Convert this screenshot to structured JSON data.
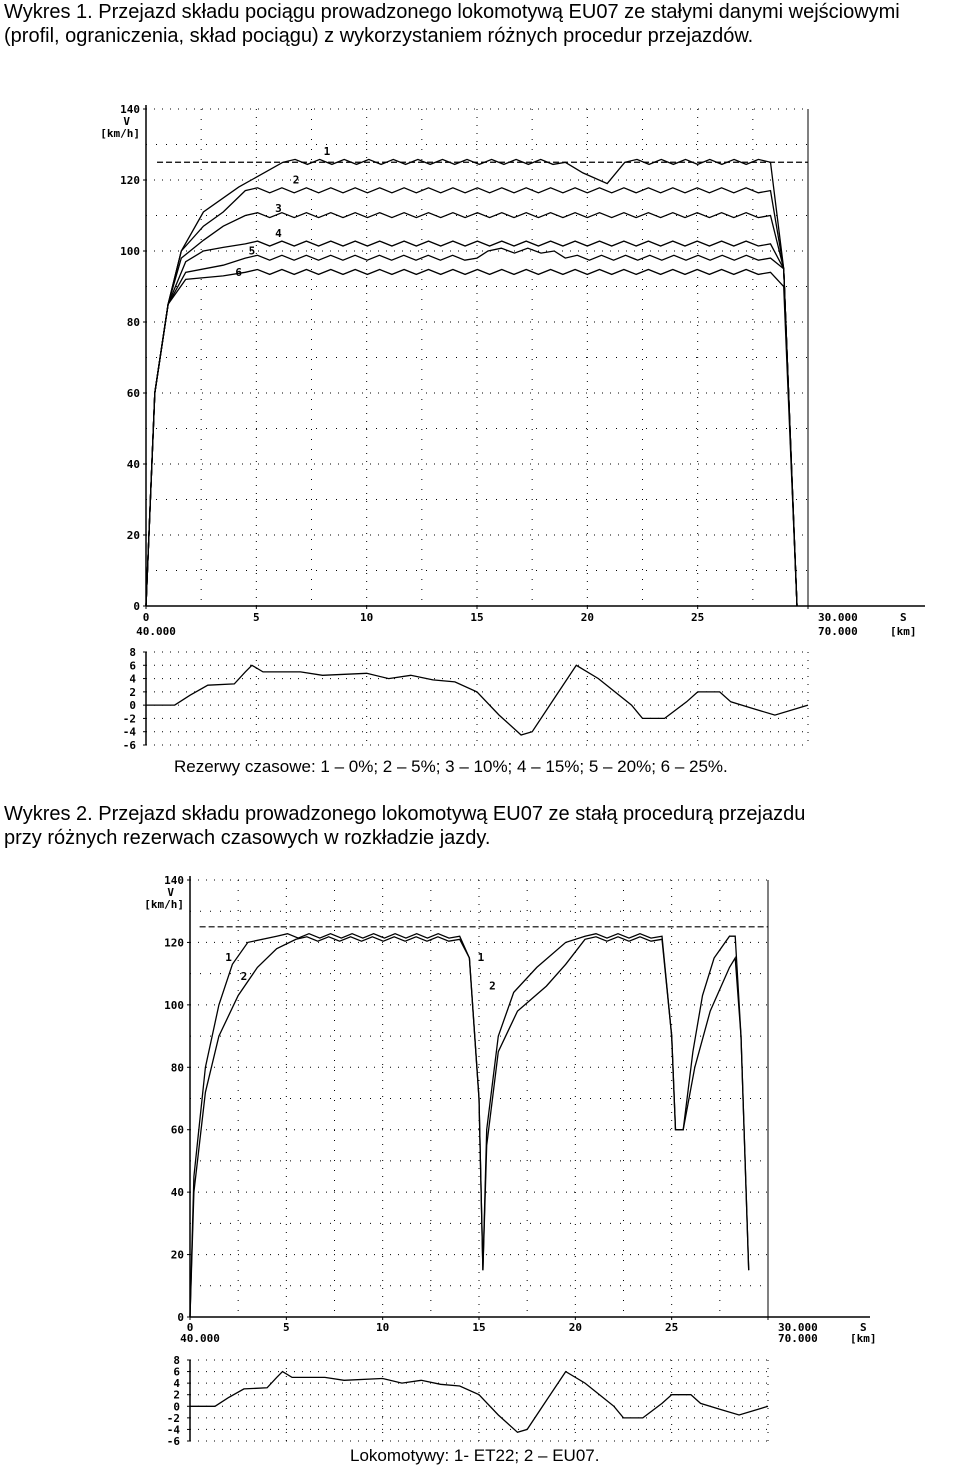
{
  "figure1": {
    "caption": "Wykres 1. Przejazd składu pociągu prowadzonego lokomotywą EU07 ze stałymi danymi wejściowymi (profil, ograniczenia, skład pociągu) z wykorzystaniem różnych procedur przejazdów.",
    "note": "Rezerwy czasowe: 1 – 0%; 2 – 5%; 3 – 10%; 4 – 15%; 5 – 20%; 6 – 25%."
  },
  "figure2": {
    "caption_line1": "Wykres 2. Przejazd składu prowadzonego lokomotywą EU07 ze stałą procedurą przejazdu",
    "caption_line2": "przy różnych rezerwach czasowych w rozkładzie jazdy.",
    "note": "Lokomotywy: 1- ET22; 2 – EU07."
  },
  "chart_data": [
    {
      "type": "line",
      "ylabel_v": "V",
      "ylabel_unit": "[km/h]",
      "xlabel_s": "S",
      "xlabel_unit": "[km]",
      "x_start_label": "40.000",
      "x_end_label": "70.000",
      "xlim": [
        0,
        30
      ],
      "ylim": [
        0,
        140
      ],
      "xticks": [
        "0",
        "5",
        "10",
        "15",
        "20",
        "25",
        "30.000"
      ],
      "yticks": [
        "0",
        "20",
        "40",
        "60",
        "80",
        "100",
        "120",
        "140"
      ],
      "speed_limit": 125,
      "series": [
        {
          "name": "1",
          "points": [
            [
              0,
              0
            ],
            [
              0.4,
              60
            ],
            [
              1,
              85
            ],
            [
              1.6,
              100
            ],
            [
              2.6,
              111
            ],
            [
              4.2,
              118
            ],
            [
              6.2,
              125
            ],
            [
              19,
              125
            ],
            [
              19.8,
              122
            ],
            [
              20.9,
              119
            ],
            [
              21.7,
              125
            ],
            [
              28.3,
              125
            ],
            [
              28.9,
              95
            ],
            [
              29.5,
              0
            ]
          ]
        },
        {
          "name": "2",
          "points": [
            [
              0,
              0
            ],
            [
              0.4,
              60
            ],
            [
              1,
              85
            ],
            [
              1.6,
              100
            ],
            [
              2.6,
              107
            ],
            [
              3.5,
              111
            ],
            [
              4.5,
              117
            ],
            [
              28.3,
              117
            ],
            [
              28.9,
              95
            ],
            [
              29.5,
              0
            ]
          ]
        },
        {
          "name": "3",
          "points": [
            [
              0,
              0
            ],
            [
              0.4,
              60
            ],
            [
              1,
              85
            ],
            [
              1.6,
              98
            ],
            [
              2.6,
              103
            ],
            [
              3.5,
              107
            ],
            [
              4.5,
              110
            ],
            [
              28.3,
              110
            ],
            [
              28.9,
              95
            ],
            [
              29.5,
              0
            ]
          ]
        },
        {
          "name": "4",
          "points": [
            [
              0,
              0
            ],
            [
              0.4,
              60
            ],
            [
              1,
              85
            ],
            [
              1.8,
              97
            ],
            [
              2.6,
              100
            ],
            [
              3.5,
              101
            ],
            [
              4.5,
              102
            ],
            [
              28.3,
              102
            ],
            [
              28.9,
              95
            ],
            [
              29.5,
              0
            ]
          ]
        },
        {
          "name": "5",
          "points": [
            [
              0,
              0
            ],
            [
              0.4,
              60
            ],
            [
              1,
              85
            ],
            [
              1.8,
              94
            ],
            [
              3.5,
              96
            ],
            [
              4.5,
              98
            ],
            [
              15,
              98
            ],
            [
              15.5,
              100
            ],
            [
              18.5,
              100
            ],
            [
              19,
              98
            ],
            [
              28.3,
              98
            ],
            [
              28.9,
              95
            ],
            [
              29.5,
              0
            ]
          ]
        },
        {
          "name": "6",
          "points": [
            [
              0,
              0
            ],
            [
              0.4,
              60
            ],
            [
              1,
              85
            ],
            [
              1.8,
              92
            ],
            [
              3.5,
              93
            ],
            [
              4.5,
              94
            ],
            [
              28.3,
              94
            ],
            [
              28.9,
              90
            ],
            [
              29.5,
              0
            ]
          ]
        }
      ],
      "labels_pos": [
        [
          8.2,
          127
        ],
        [
          6.8,
          119
        ],
        [
          6.0,
          111
        ],
        [
          6.0,
          104
        ],
        [
          4.8,
          99
        ],
        [
          4.2,
          93
        ]
      ]
    },
    {
      "type": "line",
      "ylabel_v": "V",
      "ylabel_unit": "[km/h]",
      "xlabel_s": "S",
      "xlabel_unit": "[km]",
      "x_start_label": "40.000",
      "x_end_label": "70.000",
      "xlim": [
        0,
        30
      ],
      "ylim": [
        0,
        140
      ],
      "xticks": [
        "0",
        "5",
        "10",
        "15",
        "20",
        "25",
        "30.000"
      ],
      "yticks": [
        "0",
        "20",
        "40",
        "60",
        "80",
        "100",
        "120",
        "140"
      ],
      "speed_limit": 125,
      "series": [
        {
          "name": "1",
          "points": [
            [
              0,
              0
            ],
            [
              0.2,
              45
            ],
            [
              0.8,
              80
            ],
            [
              1.5,
              100
            ],
            [
              2.2,
              113
            ],
            [
              3,
              120
            ],
            [
              4.5,
              122
            ],
            [
              14,
              122
            ],
            [
              14.5,
              115
            ],
            [
              15,
              70
            ],
            [
              15.2,
              15
            ],
            [
              15.4,
              60
            ],
            [
              16,
              90
            ],
            [
              16.8,
              104
            ],
            [
              18,
              112
            ],
            [
              19.5,
              120
            ],
            [
              20.5,
              122
            ],
            [
              24.5,
              122
            ],
            [
              25,
              90
            ],
            [
              25.2,
              60
            ],
            [
              25.6,
              60
            ],
            [
              26.1,
              85
            ],
            [
              26.6,
              103
            ],
            [
              27.2,
              115
            ],
            [
              28,
              122
            ],
            [
              28.3,
              122
            ],
            [
              28.6,
              90
            ],
            [
              29,
              15
            ]
          ]
        },
        {
          "name": "2",
          "points": [
            [
              0,
              0
            ],
            [
              0.2,
              40
            ],
            [
              0.8,
              72
            ],
            [
              1.5,
              90
            ],
            [
              2.5,
              103
            ],
            [
              3.5,
              112
            ],
            [
              4.5,
              118
            ],
            [
              5.5,
              121
            ],
            [
              14,
              121
            ],
            [
              14.5,
              115
            ],
            [
              15,
              70
            ],
            [
              15.2,
              15
            ],
            [
              15.4,
              55
            ],
            [
              16,
              85
            ],
            [
              17,
              98
            ],
            [
              18.5,
              106
            ],
            [
              19.5,
              113
            ],
            [
              20.5,
              121
            ],
            [
              24.5,
              121
            ],
            [
              25,
              90
            ],
            [
              25.2,
              60
            ],
            [
              25.6,
              60
            ],
            [
              26.2,
              80
            ],
            [
              27,
              98
            ],
            [
              28,
              112
            ],
            [
              28.3,
              115
            ],
            [
              28.6,
              90
            ],
            [
              29,
              15
            ]
          ]
        }
      ]
    }
  ],
  "gradient_data": [
    {
      "type": "line",
      "yticks": [
        "8",
        "6",
        "4",
        "2",
        "0",
        "-2",
        "-4",
        "-6"
      ],
      "ylim": [
        -6,
        8
      ],
      "points": [
        [
          0,
          0
        ],
        [
          1.3,
          0
        ],
        [
          2,
          1.5
        ],
        [
          2.8,
          3
        ],
        [
          4,
          3.2
        ],
        [
          4.5,
          5
        ],
        [
          4.8,
          6
        ],
        [
          5.3,
          5
        ],
        [
          7,
          5
        ],
        [
          8,
          4.5
        ],
        [
          10,
          4.8
        ],
        [
          11,
          4
        ],
        [
          12,
          4.5
        ],
        [
          13,
          3.8
        ],
        [
          14,
          3.5
        ],
        [
          15,
          2
        ],
        [
          16,
          -1.5
        ],
        [
          17,
          -4.5
        ],
        [
          17.5,
          -4
        ],
        [
          18.5,
          1
        ],
        [
          19.5,
          6
        ],
        [
          20.5,
          4
        ],
        [
          22,
          0
        ],
        [
          22.5,
          -2
        ],
        [
          23.5,
          -2
        ],
        [
          24.5,
          0.5
        ],
        [
          25,
          2
        ],
        [
          26,
          2
        ],
        [
          26.5,
          0.5
        ],
        [
          27.5,
          -0.5
        ],
        [
          28.5,
          -1.5
        ],
        [
          30,
          0
        ]
      ]
    },
    {
      "type": "line",
      "yticks": [
        "8",
        "6",
        "4",
        "2",
        "0",
        "-2",
        "-4",
        "-6"
      ],
      "ylim": [
        -6,
        8
      ],
      "points": [
        [
          0,
          0
        ],
        [
          1.3,
          0
        ],
        [
          2,
          1.5
        ],
        [
          2.8,
          3
        ],
        [
          4,
          3.2
        ],
        [
          4.5,
          5
        ],
        [
          4.8,
          6
        ],
        [
          5.3,
          5
        ],
        [
          7,
          5
        ],
        [
          8,
          4.5
        ],
        [
          10,
          4.8
        ],
        [
          11,
          4
        ],
        [
          12,
          4.5
        ],
        [
          13,
          3.8
        ],
        [
          14,
          3.5
        ],
        [
          15,
          2
        ],
        [
          16,
          -1.5
        ],
        [
          17,
          -4.5
        ],
        [
          17.5,
          -4
        ],
        [
          18.5,
          1
        ],
        [
          19.5,
          6
        ],
        [
          20.5,
          4
        ],
        [
          22,
          0
        ],
        [
          22.5,
          -2
        ],
        [
          23.5,
          -2
        ],
        [
          24.5,
          0.5
        ],
        [
          25,
          2
        ],
        [
          26,
          2
        ],
        [
          26.5,
          0.5
        ],
        [
          27.5,
          -0.5
        ],
        [
          28.5,
          -1.5
        ],
        [
          30,
          0
        ]
      ]
    }
  ]
}
